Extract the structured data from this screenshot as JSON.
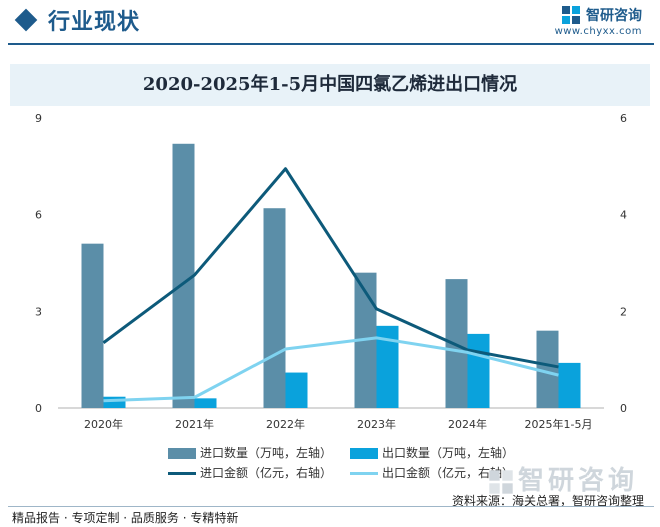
{
  "header": {
    "section_title": "行业现状",
    "brand_name": "智研咨询",
    "brand_url": "www.chyxx.com"
  },
  "colors": {
    "import_qty": "#5b8ea8",
    "export_qty": "#0aa2dc",
    "import_amt": "#0d5a7a",
    "export_amt": "#7fd3f0",
    "accent": "#1e5b8c"
  },
  "chart_data": {
    "type": "bar",
    "title": "2020-2025年1-5月中国四氯乙烯进出口情况",
    "categories": [
      "2020年",
      "2021年",
      "2022年",
      "2023年",
      "2024年",
      "2025年1-5月"
    ],
    "y_left": {
      "ylim": [
        0,
        9
      ],
      "ticks": [
        "0",
        "3",
        "6",
        "9"
      ]
    },
    "y_right": {
      "ylim": [
        0,
        6
      ],
      "ticks": [
        "0",
        "2",
        "4",
        "6"
      ]
    },
    "grid": false,
    "legend_position": "bottom",
    "series": [
      {
        "name": "进口数量（万吨，左轴）",
        "kind": "bar",
        "axis": "left",
        "values": [
          5.1,
          8.2,
          6.2,
          4.2,
          4.0,
          2.4
        ]
      },
      {
        "name": "出口数量（万吨，左轴）",
        "kind": "bar",
        "axis": "left",
        "values": [
          0.35,
          0.3,
          1.1,
          2.55,
          2.3,
          1.4
        ]
      },
      {
        "name": "进口金额（亿元，右轴）",
        "kind": "line",
        "axis": "right",
        "values": [
          1.35,
          2.75,
          4.95,
          2.05,
          1.2,
          0.85
        ]
      },
      {
        "name": "出口金额（亿元，右轴）",
        "kind": "line",
        "axis": "right",
        "values": [
          0.15,
          0.22,
          1.22,
          1.45,
          1.15,
          0.68
        ]
      }
    ]
  },
  "footer": {
    "left": "精品报告 · 专项定制 · 品质服务 · 专精特新",
    "source": "资料来源：海关总署，智研咨询整理",
    "watermark": "智研咨询"
  }
}
